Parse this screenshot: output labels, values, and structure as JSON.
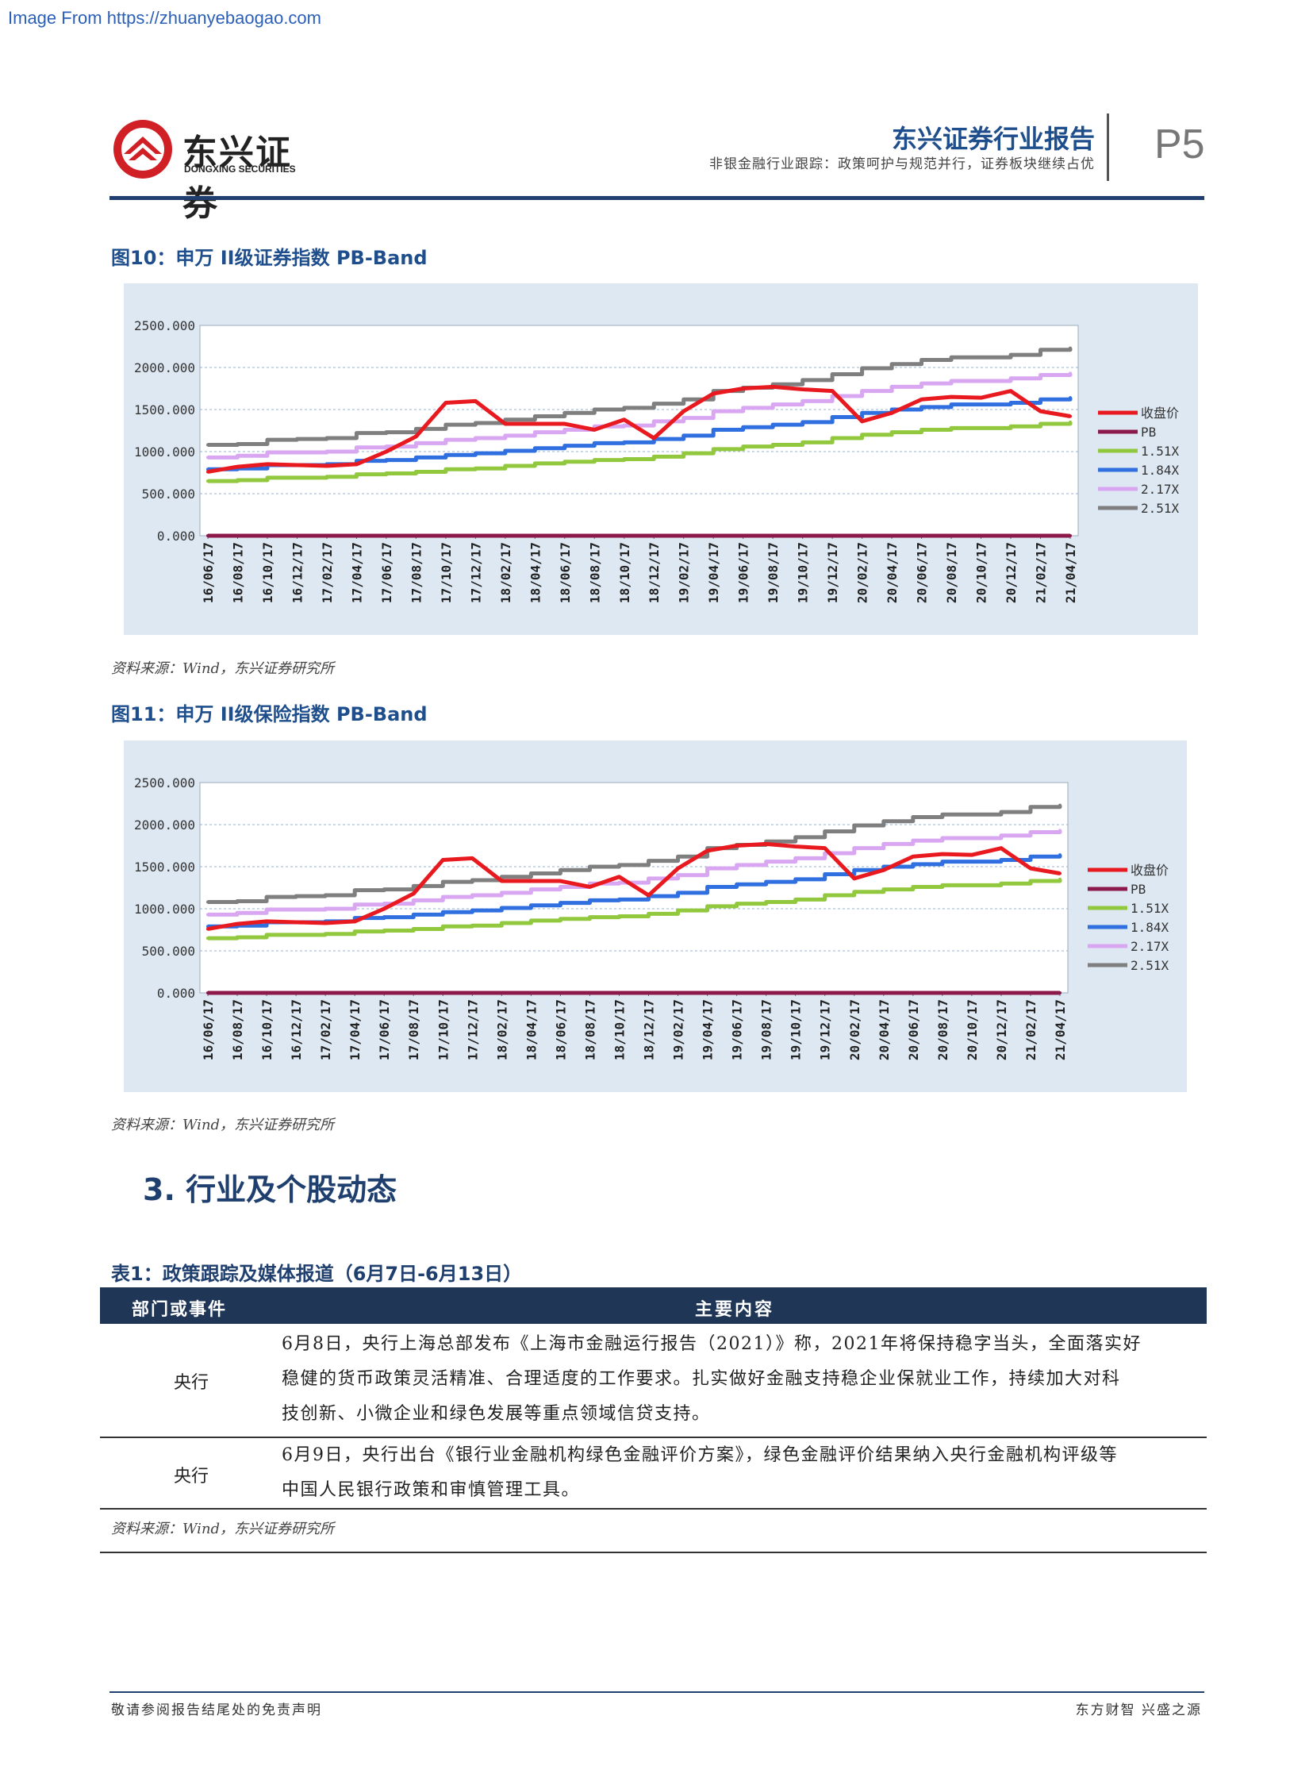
{
  "source_link": "Image From https://zhuanyebaogao.com",
  "logo": {
    "cn": "东兴证券",
    "en": "DONGXING SECURITIES"
  },
  "header": {
    "title": "东兴证券行业报告",
    "subtitle": "非银金融行业跟踪：政策呵护与规范并行，证券板块继续占优",
    "page": "P5"
  },
  "figures": [
    {
      "caption": "图10：申万 II级证券指数 PB-Band",
      "source": "资料来源：Wind，东兴证券研究所"
    },
    {
      "caption": "图11：申万 II级保险指数 PB-Band",
      "source": "资料来源：Wind，东兴证券研究所"
    }
  ],
  "colors": {
    "close": "#e8191f",
    "pb": "#8b1a4a",
    "band1": "#92c83e",
    "band2": "#2f6fe0",
    "band3": "#d9a6f2",
    "band4": "#7f7f7f"
  },
  "chart_data": [
    {
      "type": "line",
      "title": "",
      "ylim": [
        0,
        2500
      ],
      "yticks": [
        "2500.000",
        "2000.000",
        "1500.000",
        "1000.000",
        "500.000",
        "0.000"
      ],
      "categories": [
        "16/06/17",
        "16/08/17",
        "16/10/17",
        "16/12/17",
        "17/02/17",
        "17/04/17",
        "17/06/17",
        "17/08/17",
        "17/10/17",
        "17/12/17",
        "18/02/17",
        "18/04/17",
        "18/06/17",
        "18/08/17",
        "18/10/17",
        "18/12/17",
        "19/02/17",
        "19/04/17",
        "19/06/17",
        "19/08/17",
        "19/10/17",
        "19/12/17",
        "20/02/17",
        "20/04/17",
        "20/06/17",
        "20/08/17",
        "20/10/17",
        "20/12/17",
        "21/02/17",
        "21/04/17"
      ],
      "legend": [
        "收盘价",
        "PB",
        "1.51X",
        "1.84X",
        "2.17X",
        "2.51X"
      ],
      "legend_position": "right",
      "series": [
        {
          "name": "收盘价",
          "values": [
            760,
            820,
            850,
            840,
            830,
            850,
            1000,
            1180,
            1580,
            1600,
            1330,
            1330,
            1330,
            1260,
            1380,
            1160,
            1480,
            1690,
            1750,
            1770,
            1740,
            1720,
            1360,
            1460,
            1620,
            1650,
            1640,
            1720,
            1480,
            1420
          ]
        },
        {
          "name": "PB",
          "values": [
            0,
            0,
            0,
            0,
            0,
            0,
            0,
            0,
            0,
            0,
            0,
            0,
            0,
            0,
            0,
            0,
            0,
            0,
            0,
            0,
            0,
            0,
            0,
            0,
            0,
            0,
            0,
            0,
            0,
            0
          ]
        },
        {
          "name": "1.51X",
          "values": [
            650,
            660,
            690,
            690,
            700,
            730,
            740,
            760,
            790,
            800,
            830,
            860,
            880,
            900,
            910,
            940,
            980,
            1030,
            1060,
            1080,
            1110,
            1160,
            1200,
            1230,
            1260,
            1280,
            1280,
            1300,
            1330,
            1350
          ]
        },
        {
          "name": "1.84X",
          "values": [
            790,
            800,
            840,
            840,
            850,
            890,
            900,
            930,
            960,
            980,
            1010,
            1040,
            1070,
            1100,
            1110,
            1150,
            1190,
            1260,
            1290,
            1320,
            1350,
            1410,
            1460,
            1500,
            1530,
            1560,
            1560,
            1580,
            1620,
            1640
          ]
        },
        {
          "name": "2.17X",
          "values": [
            930,
            950,
            990,
            990,
            1000,
            1050,
            1060,
            1100,
            1140,
            1160,
            1190,
            1230,
            1260,
            1300,
            1310,
            1360,
            1400,
            1480,
            1520,
            1560,
            1600,
            1660,
            1720,
            1770,
            1810,
            1840,
            1840,
            1870,
            1910,
            1930
          ]
        },
        {
          "name": "2.51X",
          "values": [
            1080,
            1090,
            1140,
            1150,
            1160,
            1220,
            1230,
            1270,
            1320,
            1340,
            1380,
            1420,
            1460,
            1500,
            1520,
            1570,
            1620,
            1720,
            1760,
            1800,
            1850,
            1920,
            1990,
            2040,
            2090,
            2120,
            2120,
            2150,
            2210,
            2230
          ]
        }
      ]
    },
    {
      "type": "line",
      "title": "",
      "ylim": [
        0,
        2500
      ],
      "yticks": [
        "2500.000",
        "2000.000",
        "1500.000",
        "1000.000",
        "500.000",
        "0.000"
      ],
      "categories": [
        "16/06/17",
        "16/08/17",
        "16/10/17",
        "16/12/17",
        "17/02/17",
        "17/04/17",
        "17/06/17",
        "17/08/17",
        "17/10/17",
        "17/12/17",
        "18/02/17",
        "18/04/17",
        "18/06/17",
        "18/08/17",
        "18/10/17",
        "18/12/17",
        "19/02/17",
        "19/04/17",
        "19/06/17",
        "19/08/17",
        "19/10/17",
        "19/12/17",
        "20/02/17",
        "20/04/17",
        "20/06/17",
        "20/08/17",
        "20/10/17",
        "20/12/17",
        "21/02/17",
        "21/04/17"
      ],
      "legend": [
        "收盘价",
        "PB",
        "1.51X",
        "1.84X",
        "2.17X",
        "2.51X"
      ],
      "legend_position": "right",
      "series": [
        {
          "name": "收盘价",
          "values": [
            760,
            820,
            850,
            840,
            830,
            850,
            1000,
            1180,
            1580,
            1600,
            1330,
            1330,
            1330,
            1260,
            1380,
            1160,
            1480,
            1690,
            1750,
            1770,
            1740,
            1720,
            1360,
            1460,
            1620,
            1650,
            1640,
            1720,
            1480,
            1420
          ]
        },
        {
          "name": "PB",
          "values": [
            0,
            0,
            0,
            0,
            0,
            0,
            0,
            0,
            0,
            0,
            0,
            0,
            0,
            0,
            0,
            0,
            0,
            0,
            0,
            0,
            0,
            0,
            0,
            0,
            0,
            0,
            0,
            0,
            0,
            0
          ]
        },
        {
          "name": "1.51X",
          "values": [
            650,
            660,
            690,
            690,
            700,
            730,
            740,
            760,
            790,
            800,
            830,
            860,
            880,
            900,
            910,
            940,
            980,
            1030,
            1060,
            1080,
            1110,
            1160,
            1200,
            1230,
            1260,
            1280,
            1280,
            1300,
            1330,
            1350
          ]
        },
        {
          "name": "1.84X",
          "values": [
            790,
            800,
            840,
            840,
            850,
            890,
            900,
            930,
            960,
            980,
            1010,
            1040,
            1070,
            1100,
            1110,
            1150,
            1190,
            1260,
            1290,
            1320,
            1350,
            1410,
            1460,
            1500,
            1530,
            1560,
            1560,
            1580,
            1620,
            1640
          ]
        },
        {
          "name": "2.17X",
          "values": [
            930,
            950,
            990,
            990,
            1000,
            1050,
            1060,
            1100,
            1140,
            1160,
            1190,
            1230,
            1260,
            1300,
            1310,
            1360,
            1400,
            1480,
            1520,
            1560,
            1600,
            1660,
            1720,
            1770,
            1810,
            1840,
            1840,
            1870,
            1910,
            1930
          ]
        },
        {
          "name": "2.51X",
          "values": [
            1080,
            1090,
            1140,
            1150,
            1160,
            1220,
            1230,
            1270,
            1320,
            1340,
            1380,
            1420,
            1460,
            1500,
            1520,
            1570,
            1620,
            1720,
            1760,
            1800,
            1850,
            1920,
            1990,
            2040,
            2090,
            2120,
            2120,
            2150,
            2210,
            2230
          ]
        }
      ]
    }
  ],
  "section": {
    "title": "3.  行业及个股动态"
  },
  "table": {
    "caption": "表1：政策跟踪及媒体报道（6月7日-6月13日）",
    "headers": [
      "部门或事件",
      "主要内容"
    ],
    "rows": [
      {
        "dept": "央行",
        "lines": [
          "6月8日，央行上海总部发布《上海市金融运行报告（2021）》称，2021年将保持稳字当头，全面落实好",
          "稳健的货币政策灵活精准、合理适度的工作要求。扎实做好金融支持稳企业保就业工作，持续加大对科",
          "技创新、小微企业和绿色发展等重点领域信贷支持。"
        ]
      },
      {
        "dept": "央行",
        "lines": [
          "6月9日，央行出台《银行业金融机构绿色金融评价方案》，绿色金融评价结果纳入央行金融机构评级等",
          "中国人民银行政策和审慎管理工具。"
        ]
      }
    ],
    "source": "资料来源：Wind，东兴证券研究所"
  },
  "footer": {
    "left": "敬请参阅报告结尾处的免责声明",
    "right": "东方财智 兴盛之源"
  }
}
